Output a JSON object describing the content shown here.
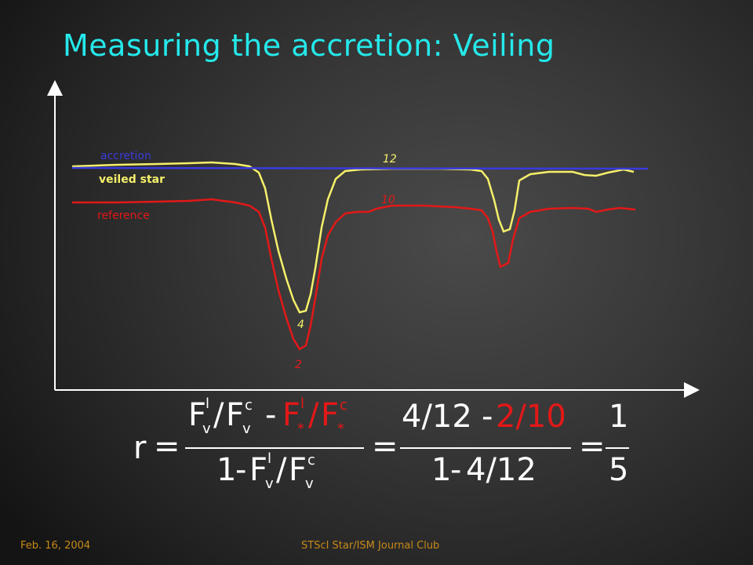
{
  "title": "Measuring the accretion: Veiling",
  "legend": {
    "accretion": "accretion",
    "veiled_star": "veiled star",
    "reference": "reference"
  },
  "annotations": {
    "veiled_continuum": "12",
    "reference_continuum": "10",
    "veiled_line": "4",
    "reference_line": "2"
  },
  "colors": {
    "title": "#25e8ea",
    "accretion": "#3a3adf",
    "veiled_star": "#f5f06a",
    "reference": "#e31818",
    "footer": "#c88a1a"
  },
  "equation": {
    "lhs": "r",
    "equals": "=",
    "F": "F",
    "l": "l",
    "v": "v",
    "c": "c",
    "star": "*",
    "slash": "/",
    "minus": "-",
    "one": "1",
    "frac2_num_black": "4/12",
    "frac2_num_red": "2/10",
    "frac2_den_one": "1",
    "frac2_den_val": "4/12",
    "result_num": "1",
    "result_den": "5"
  },
  "footer": {
    "date": "Feb. 16, 2004",
    "event": "STScI Star/ISM Journal Club"
  }
}
